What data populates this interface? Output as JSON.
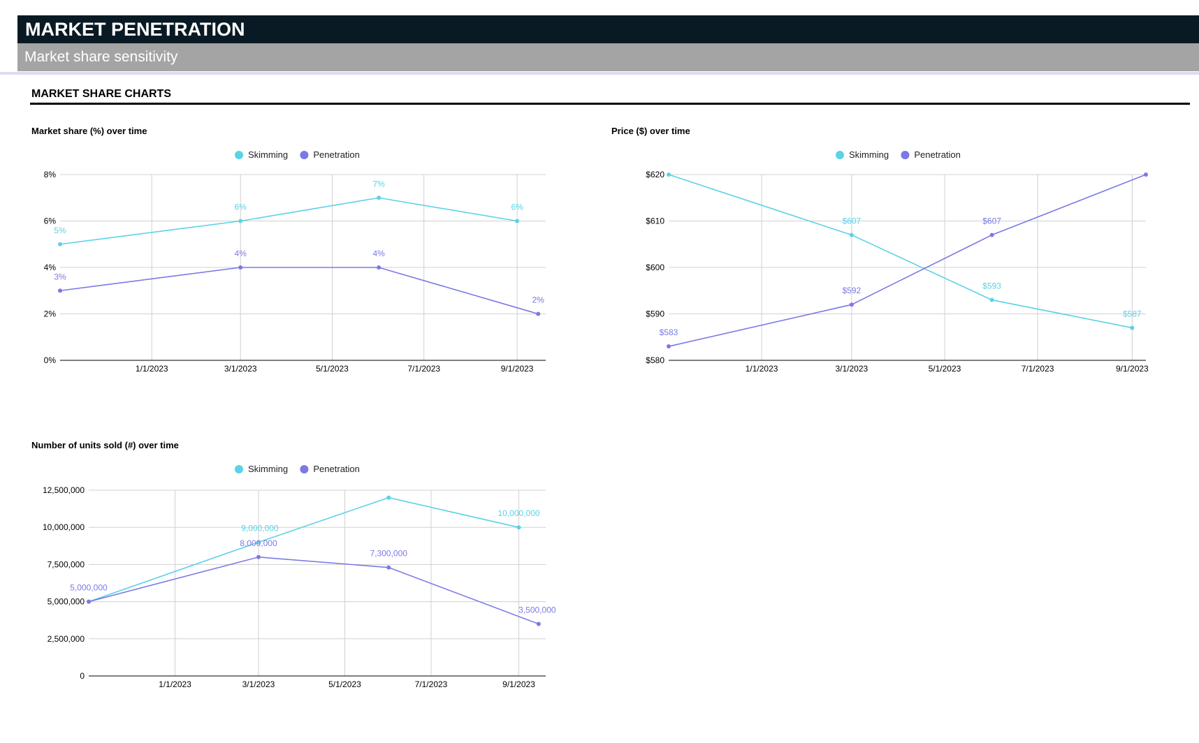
{
  "header": {
    "title": "MARKET PENETRATION",
    "subtitle": "Market share sensitivity",
    "section": "MARKET SHARE CHARTS"
  },
  "colors": {
    "skimming": "#5bd2e6",
    "penetration": "#7b79e6",
    "grid": "#d0d0d0",
    "axis": "#333333"
  },
  "chart_data": [
    {
      "type": "line",
      "title": "Market share (%) over time",
      "legend": "top-center",
      "grid": true,
      "x_ticks": [
        "1/1/2023",
        "3/1/2023",
        "5/1/2023",
        "7/1/2023",
        "9/1/2023"
      ],
      "xlim": [
        "2022-11-01",
        "2023-09-20"
      ],
      "y_ticks": [
        "0%",
        "2%",
        "4%",
        "6%",
        "8%"
      ],
      "ylim": [
        0,
        8
      ],
      "series": [
        {
          "name": "Skimming",
          "color": "#5bd2e6",
          "x": [
            "2022-11-01",
            "2023-03-01",
            "2023-06-01",
            "2023-09-01"
          ],
          "values": [
            5,
            6,
            7,
            6
          ],
          "labels": [
            "5%",
            "6%",
            "7%",
            "6%"
          ]
        },
        {
          "name": "Penetration",
          "color": "#7b79e6",
          "x": [
            "2022-11-01",
            "2023-03-01",
            "2023-06-01",
            "2023-09-15"
          ],
          "values": [
            3,
            4,
            4,
            2
          ],
          "labels": [
            "3%",
            "4%",
            "4%",
            "2%"
          ]
        }
      ]
    },
    {
      "type": "line",
      "title": "Price ($) over time",
      "legend": "top-center",
      "grid": true,
      "x_ticks": [
        "1/1/2023",
        "3/1/2023",
        "5/1/2023",
        "7/1/2023",
        "9/1/2023"
      ],
      "xlim": [
        "2022-11-01",
        "2023-09-10"
      ],
      "y_ticks": [
        "$580",
        "$590",
        "$600",
        "$610",
        "$620"
      ],
      "ylim": [
        580,
        620
      ],
      "series": [
        {
          "name": "Skimming",
          "color": "#5bd2e6",
          "x": [
            "2022-11-01",
            "2023-03-01",
            "2023-06-01",
            "2023-09-01"
          ],
          "values": [
            620,
            607,
            593,
            587
          ],
          "labels": [
            "",
            "$607",
            "$593",
            "$587"
          ]
        },
        {
          "name": "Penetration",
          "color": "#7b79e6",
          "x": [
            "2022-11-01",
            "2023-03-01",
            "2023-06-01",
            "2023-09-10"
          ],
          "values": [
            583,
            592,
            607,
            620
          ],
          "labels": [
            "$583",
            "$592",
            "$607",
            ""
          ]
        }
      ]
    },
    {
      "type": "line",
      "title": "Number of units sold (#) over time",
      "legend": "top-center",
      "grid": true,
      "x_ticks": [
        "1/1/2023",
        "3/1/2023",
        "5/1/2023",
        "7/1/2023",
        "9/1/2023"
      ],
      "xlim": [
        "2022-11-01",
        "2023-09-20"
      ],
      "y_ticks": [
        "0",
        "2,500,000",
        "5,000,000",
        "7,500,000",
        "10,000,000",
        "12,500,000"
      ],
      "ylim": [
        0,
        12500000
      ],
      "series": [
        {
          "name": "Skimming",
          "color": "#5bd2e6",
          "x": [
            "2022-11-01",
            "2023-03-01",
            "2023-06-01",
            "2023-09-01"
          ],
          "values": [
            5000000,
            9000000,
            12000000,
            10000000
          ],
          "labels": [
            "",
            "9,000,000",
            "",
            "10,000,000"
          ]
        },
        {
          "name": "Penetration",
          "color": "#7b79e6",
          "x": [
            "2022-11-01",
            "2023-03-01",
            "2023-06-01",
            "2023-09-15"
          ],
          "values": [
            5000000,
            8000000,
            7300000,
            3500000
          ],
          "labels": [
            "5,000,000",
            "8,000,000",
            "7,300,000",
            "3,500,000"
          ]
        }
      ]
    }
  ]
}
